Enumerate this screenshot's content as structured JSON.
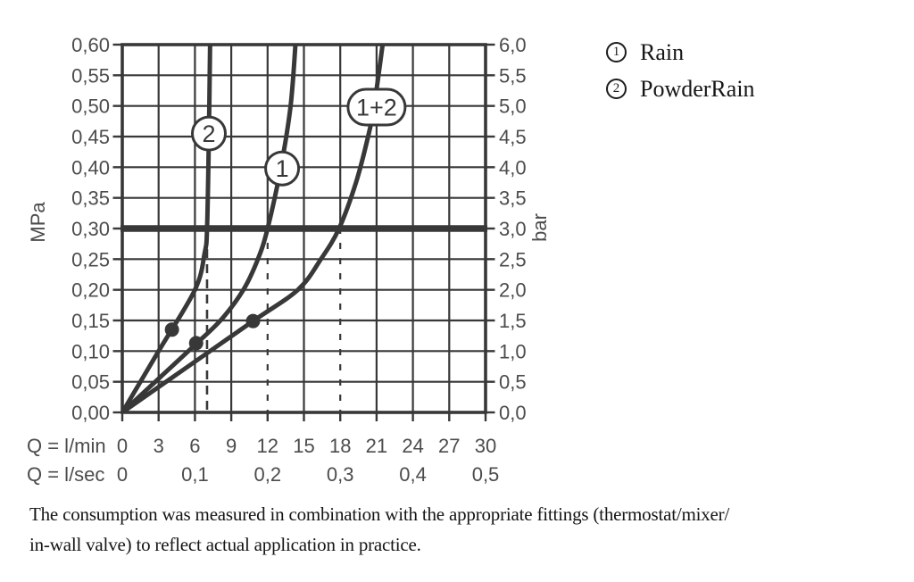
{
  "legend": {
    "items": [
      {
        "symbol": "1",
        "label": "Rain"
      },
      {
        "symbol": "2",
        "label": "PowderRain"
      }
    ]
  },
  "caption": {
    "lines": [
      "The consumption was measured in combination with the appropriate fittings (thermostat/mixer/",
      "in-wall valve) to reflect actual application in practice."
    ]
  },
  "chart_data": {
    "type": "line",
    "title": "",
    "x_axis": {
      "title_primary": "Q = l/min",
      "title_secondary": "Q = l/sec",
      "range_lmin": [
        0,
        30
      ],
      "ticks_lmin": {
        "values": [
          0,
          3,
          6,
          9,
          12,
          15,
          18,
          21,
          24,
          27,
          30
        ],
        "labels": [
          "0",
          "3",
          "6",
          "9",
          "12",
          "15",
          "18",
          "21",
          "24",
          "27",
          "30"
        ]
      },
      "ticks_lsec": {
        "values": [
          0,
          6,
          12,
          18,
          24,
          30
        ],
        "labels": [
          "0",
          "0,1",
          "0,2",
          "0,3",
          "0,4",
          "0,5"
        ]
      }
    },
    "y_axis_left": {
      "unit": "MPa",
      "range_mpa": [
        0,
        0.6
      ],
      "step_mpa": 0.05,
      "labels": [
        "0,60",
        "0,55",
        "0,50",
        "0,45",
        "0,40",
        "0,35",
        "0,30",
        "0,25",
        "0,20",
        "0,15",
        "0,10",
        "0,05",
        "0,00"
      ]
    },
    "y_axis_right": {
      "unit": "bar",
      "labels": [
        "6,0",
        "5,5",
        "5,0",
        "4,5",
        "4,0",
        "3,5",
        "3,0",
        "2,5",
        "2,0",
        "1,5",
        "1,0",
        "0,5",
        "0,0"
      ]
    },
    "reference_line": {
      "mpa": 0.3,
      "bar": 3.0
    },
    "dashed_guides_lmin": [
      7,
      12,
      18
    ],
    "grid": true,
    "series": [
      {
        "id": "2",
        "bubble": {
          "text": "2",
          "shape": "circle",
          "at_lmin_mpa": [
            7.15,
            0.455
          ]
        },
        "marker_point_lmin_mpa": [
          4.1,
          0.135
        ],
        "points_lmin_mpa": [
          [
            0,
            0
          ],
          [
            3,
            0.1
          ],
          [
            6,
            0.2
          ],
          [
            6.8,
            0.26
          ],
          [
            7.0,
            0.3
          ],
          [
            7.15,
            0.45
          ],
          [
            7.25,
            0.6
          ]
        ]
      },
      {
        "id": "1",
        "bubble": {
          "text": "1",
          "shape": "circle",
          "at_lmin_mpa": [
            13.2,
            0.398
          ]
        },
        "marker_point_lmin_mpa": [
          6.1,
          0.113
        ],
        "points_lmin_mpa": [
          [
            0,
            0
          ],
          [
            3,
            0.055
          ],
          [
            6,
            0.11
          ],
          [
            8.2,
            0.152
          ],
          [
            10,
            0.2
          ],
          [
            11.2,
            0.25
          ],
          [
            12,
            0.3
          ],
          [
            13.1,
            0.4
          ],
          [
            13.9,
            0.5
          ],
          [
            14.3,
            0.6
          ]
        ]
      },
      {
        "id": "1+2",
        "bubble": {
          "text": "1+2",
          "shape": "stadium",
          "at_lmin_mpa": [
            21.0,
            0.498
          ]
        },
        "marker_point_lmin_mpa": [
          10.8,
          0.149
        ],
        "points_lmin_mpa": [
          [
            0,
            0
          ],
          [
            5,
            0.069
          ],
          [
            10.8,
            0.149
          ],
          [
            14.5,
            0.2
          ],
          [
            16.4,
            0.25
          ],
          [
            17.9,
            0.3
          ],
          [
            19.3,
            0.375
          ],
          [
            20.3,
            0.45
          ],
          [
            20.8,
            0.5
          ],
          [
            21.5,
            0.6
          ]
        ]
      }
    ],
    "colors": {
      "ink": "#383838",
      "tick_text": "#4c4c4c",
      "background": "#ffffff",
      "bubble_fill": "#ffffff"
    }
  }
}
